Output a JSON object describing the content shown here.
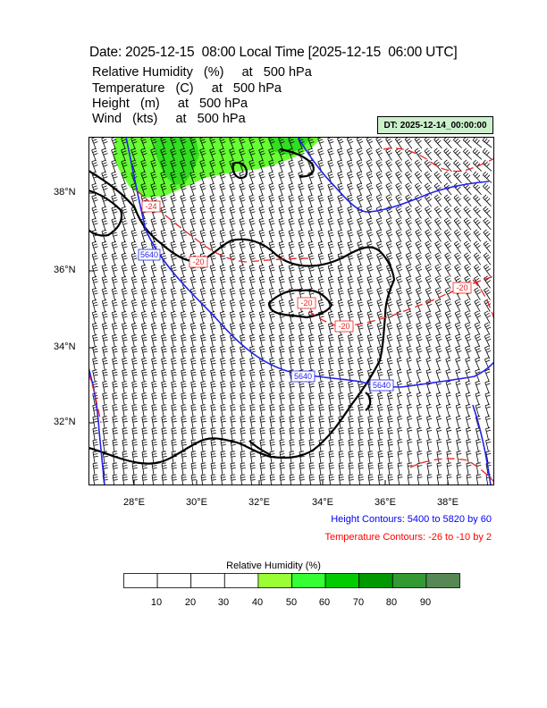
{
  "header": {
    "title": "Date: 2025-12-15  08:00 Local Time [2025-12-15  06:00 UTC]",
    "fields": [
      "Relative Humidity   (%)     at   500 hPa",
      "Temperature   (C)     at   500 hPa",
      "Height   (m)     at   500 hPa",
      "Wind   (kts)     at   500 hPa"
    ],
    "dt_label": "DT: 2025-12-14_00:00:00"
  },
  "map": {
    "lon_labels": [
      "28°E",
      "30°E",
      "32°E",
      "34°E",
      "36°E",
      "38°E"
    ],
    "lat_labels": [
      "38°N",
      "36°N",
      "34°N",
      "32°N"
    ],
    "height_contour_labels": [
      "5640",
      "5640",
      "5640"
    ],
    "temperature_contour_labels": [
      "-24",
      "-20",
      "-20",
      "-20",
      "-20"
    ],
    "colors": {
      "height": "#0000ff",
      "temperature": "#ff0000",
      "coast": "#000000",
      "rh_high": "#66ff33",
      "rh_mid": "#33cc33"
    }
  },
  "legend": {
    "height_contours": "Height Contours: 5400 to 5820 by 60",
    "temperature_contours": "Temperature Contours: -26 to -10 by 2"
  },
  "colorbar": {
    "title": "Relative Humidity  (%)",
    "ticks": [
      "10",
      "20",
      "30",
      "40",
      "50",
      "60",
      "70",
      "80",
      "90"
    ],
    "colors": [
      "#ffffff",
      "#ffffff",
      "#ffffff",
      "#ffffff",
      "#99ff33",
      "#33ff33",
      "#00cc00",
      "#009900",
      "#339933",
      "#558855"
    ]
  }
}
